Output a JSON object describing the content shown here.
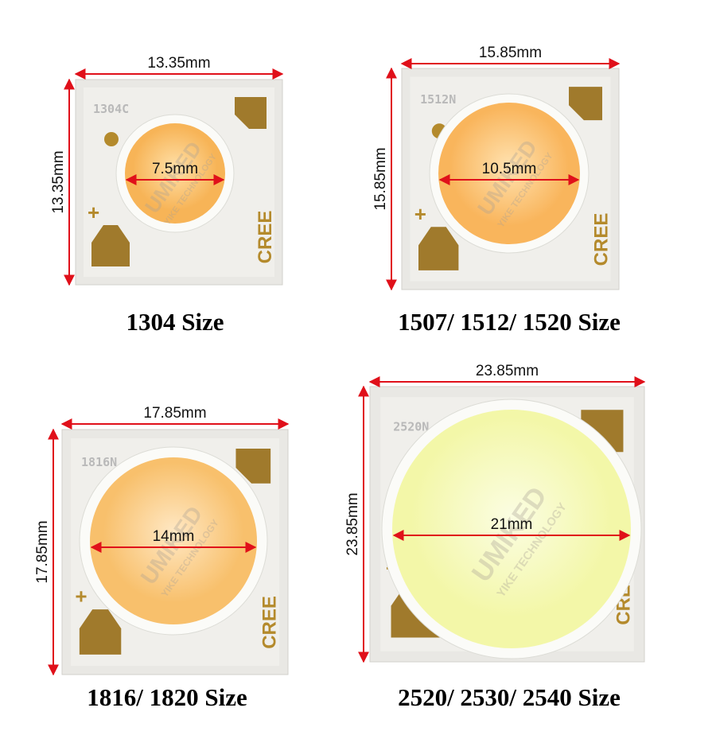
{
  "watermark": {
    "logo": "UMIKED",
    "tagline": "YIKE TECHNOLOGY"
  },
  "panels": [
    {
      "chip_code": "1304C",
      "width": "13.35mm",
      "height": "13.35mm",
      "diameter": "7.5mm",
      "caption": "1304 Size",
      "brand": "CREE",
      "polarity": "+"
    },
    {
      "chip_code": "1512N",
      "width": "15.85mm",
      "height": "15.85mm",
      "diameter": "10.5mm",
      "caption": "1507/ 1512/ 1520 Size",
      "brand": "CREE",
      "polarity": "+"
    },
    {
      "chip_code": "1816N",
      "width": "17.85mm",
      "height": "17.85mm",
      "diameter": "14mm",
      "caption": "1816/ 1820 Size",
      "brand": "CREE",
      "polarity": "+"
    },
    {
      "chip_code": "2520N",
      "width": "23.85mm",
      "height": "23.85mm",
      "diameter": "21mm",
      "caption": "2520/ 2530/ 2540 Size",
      "brand": "CREE",
      "polarity": "+"
    }
  ]
}
